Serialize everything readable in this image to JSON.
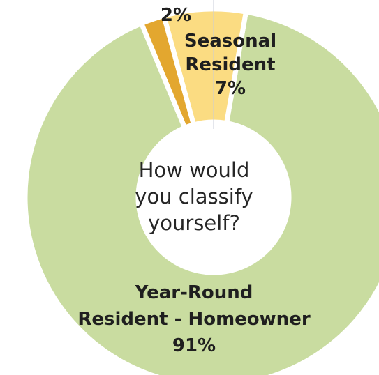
{
  "chart_data": {
    "type": "pie",
    "donut": true,
    "center_text": [
      "How would",
      "you classify",
      "yourself?"
    ],
    "slices": [
      {
        "name_lines": [
          "Year-Round",
          "Resident - Homeowner"
        ],
        "value": 91,
        "label": "91%",
        "color": "#c9dca0"
      },
      {
        "name_lines": [],
        "value": 2,
        "label": "2%",
        "color": "#e3a72f"
      },
      {
        "name_lines": [
          "Seasonal",
          "Resident"
        ],
        "value": 7,
        "label": "7%",
        "color": "#fbdc82"
      }
    ]
  }
}
